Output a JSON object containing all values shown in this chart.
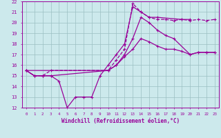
{
  "xlabel": "Windchill (Refroidissement éolien,°C)",
  "xlim": [
    -0.5,
    23.5
  ],
  "ylim": [
    12,
    22
  ],
  "xticks": [
    0,
    1,
    2,
    3,
    4,
    5,
    6,
    7,
    8,
    9,
    10,
    11,
    12,
    13,
    14,
    15,
    16,
    17,
    18,
    19,
    20,
    21,
    22,
    23
  ],
  "yticks": [
    12,
    13,
    14,
    15,
    16,
    17,
    18,
    19,
    20,
    21,
    22
  ],
  "bg_color": "#cce9ec",
  "line_color": "#990099",
  "grid_color": "#9bbfc2",
  "line1_x": [
    0,
    1,
    2,
    3,
    4,
    5,
    6,
    7,
    8,
    9,
    10,
    11,
    12,
    13,
    14,
    15,
    16,
    19,
    20
  ],
  "line1_y": [
    15.5,
    15.0,
    15.0,
    15.0,
    14.5,
    12.0,
    13.0,
    13.0,
    13.0,
    15.0,
    16.0,
    17.0,
    18.0,
    21.5,
    21.0,
    20.5,
    20.5,
    20.3,
    20.3
  ],
  "line2_x": [
    0,
    1,
    2,
    3,
    10,
    11,
    12,
    13,
    14,
    15,
    16,
    17,
    18,
    19,
    20,
    21,
    22,
    23
  ],
  "line2_y": [
    15.5,
    15.0,
    15.0,
    15.5,
    15.5,
    16.5,
    17.5,
    21.8,
    21.0,
    20.5,
    20.3,
    20.3,
    20.2,
    20.3,
    20.2,
    20.3,
    20.2,
    20.3
  ],
  "line3_x": [
    0,
    1,
    2,
    3,
    10,
    11,
    12,
    13,
    14,
    15,
    16,
    17,
    18,
    20,
    21,
    22,
    23
  ],
  "line3_y": [
    15.5,
    15.0,
    15.0,
    15.0,
    15.5,
    16.0,
    17.0,
    18.5,
    20.5,
    20.0,
    19.3,
    18.8,
    18.5,
    17.0,
    17.2,
    17.2,
    17.2
  ],
  "line4_x": [
    0,
    10,
    11,
    12,
    13,
    14,
    15,
    16,
    17,
    18,
    19,
    20,
    21,
    22,
    23
  ],
  "line4_y": [
    15.5,
    15.5,
    16.0,
    16.8,
    17.5,
    18.5,
    18.2,
    17.8,
    17.5,
    17.5,
    17.3,
    17.0,
    17.2,
    17.2,
    17.2
  ]
}
